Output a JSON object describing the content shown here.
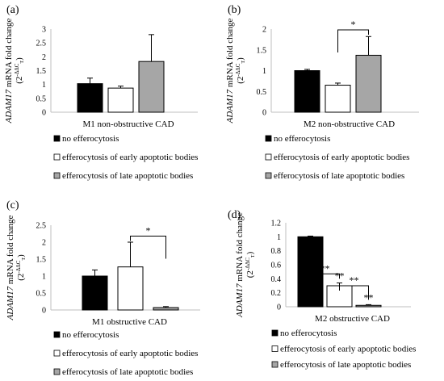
{
  "legend": [
    {
      "label": "no efferocytosis",
      "color": "#000000"
    },
    {
      "label": "efferocytosis of early apoptotic bodies",
      "color": "#ffffff"
    },
    {
      "label": "efferocytosis of late apoptotic bodies",
      "color": "#a6a6a6"
    }
  ],
  "chart_data": [
    {
      "type": "bar",
      "panel": "(a)",
      "categories": [
        "no efferocytosis",
        "efferocytosis of early apoptotic bodies",
        "efferocytosis of late apoptotic bodies"
      ],
      "values": [
        1.03,
        0.87,
        1.83
      ],
      "errors": [
        0.2,
        0.07,
        0.97
      ],
      "colors": [
        "#000000",
        "#ffffff",
        "#a6a6a6"
      ],
      "ylim": [
        0,
        3
      ],
      "yticks": [
        0,
        0.5,
        1,
        1.5,
        2,
        2.5,
        3
      ],
      "ylabel_gene": "ADAM17",
      "ylabel": " mRNA fold change",
      "ylabel2": "(2",
      "ylabel2_sup": "-ΔΔC",
      "ylabel2_sub": "T",
      "ylabel2_end": ")",
      "xlabel": "M1 non-obstructive CAD",
      "annotations": []
    },
    {
      "type": "bar",
      "panel": "(b)",
      "categories": [
        "no efferocytosis",
        "efferocytosis of early apoptotic bodies",
        "efferocytosis of late apoptotic bodies"
      ],
      "values": [
        1.0,
        0.65,
        1.37
      ],
      "errors": [
        0.03,
        0.05,
        0.45
      ],
      "colors": [
        "#000000",
        "#ffffff",
        "#a6a6a6"
      ],
      "ylim": [
        0,
        2
      ],
      "yticks": [
        0,
        0.5,
        1,
        1.5,
        2
      ],
      "ylabel_gene": "ADAM17",
      "ylabel": " mRNA fold change",
      "ylabel2": "(2",
      "ylabel2_sup": "-ΔΔC",
      "ylabel2_sub": "T",
      "ylabel2_end": ")",
      "xlabel": "M2 non-obstructive CAD",
      "annotations": [
        {
          "type": "bracket",
          "from": 1,
          "to": 2,
          "y": 1.98,
          "label": "*"
        }
      ]
    },
    {
      "type": "bar",
      "panel": "(c)",
      "categories": [
        "no efferocytosis",
        "efferocytosis of early apoptotic bodies",
        "efferocytosis of late apoptotic bodies"
      ],
      "values": [
        1.0,
        1.27,
        0.07
      ],
      "errors": [
        0.18,
        0.73,
        0.03
      ],
      "colors": [
        "#000000",
        "#ffffff",
        "#a6a6a6"
      ],
      "ylim": [
        0,
        2.5
      ],
      "yticks": [
        0,
        0.5,
        1,
        1.5,
        2,
        2.5
      ],
      "ylabel_gene": "ADAM17",
      "ylabel": " mRNA fold change",
      "ylabel2": "(2",
      "ylabel2_sup": "-ΔΔC",
      "ylabel2_sub": "T",
      "ylabel2_end": ")",
      "xlabel": "M1 obstructive CAD",
      "annotations": [
        {
          "type": "bracket",
          "from": 1,
          "to": 2,
          "y": 2.18,
          "label": "*"
        }
      ]
    },
    {
      "type": "bar",
      "panel": "(d)",
      "categories": [
        "no efferocytosis",
        "efferocytosis of early apoptotic bodies",
        "efferocytosis of late apoptotic bodies"
      ],
      "values": [
        1.0,
        0.3,
        0.02
      ],
      "errors": [
        0.01,
        0.04,
        0.01
      ],
      "colors": [
        "#000000",
        "#ffffff",
        "#a6a6a6"
      ],
      "ylim": [
        0,
        1.2
      ],
      "yticks": [
        0,
        0.2,
        0.4,
        0.6,
        0.8,
        1,
        1.2
      ],
      "ylabel_gene": "ADAM17",
      "ylabel": " mRNA fold change",
      "ylabel2": "(2",
      "ylabel2_sup": "-ΔΔC",
      "ylabel2_sub": "T",
      "ylabel2_end": ")",
      "xlabel": "M2 obstructive CAD",
      "annotations": [
        {
          "type": "bracket",
          "from": 0,
          "to": 1,
          "y": 0.47,
          "label": "**"
        },
        {
          "type": "bracket",
          "from": 1,
          "to": 2,
          "y": 0.3,
          "label": "**"
        },
        {
          "type": "label",
          "bar": 1,
          "label": "**"
        },
        {
          "type": "label",
          "bar": 2,
          "label": "**"
        }
      ]
    }
  ]
}
